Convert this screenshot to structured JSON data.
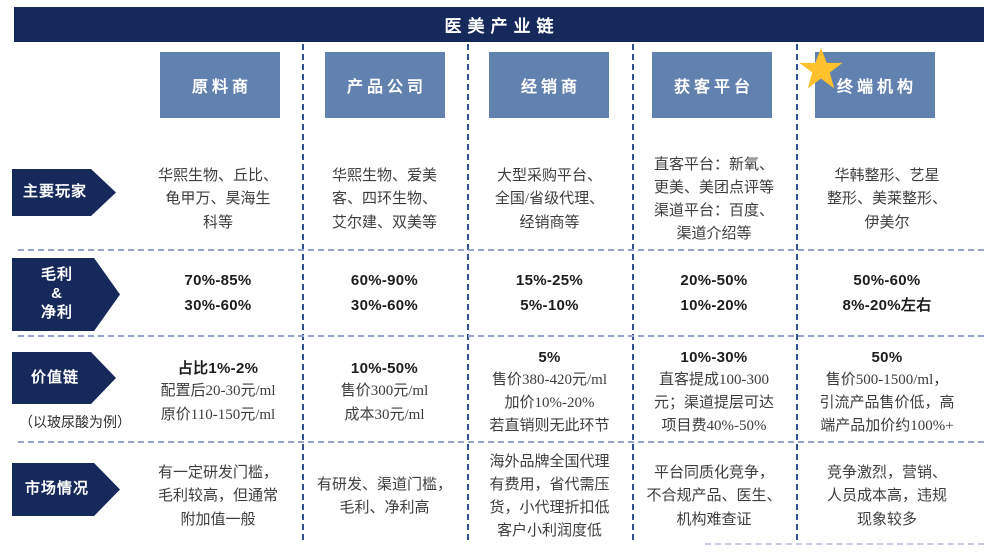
{
  "title": "医美产业链",
  "colors": {
    "navy": "#16295B",
    "header_blue": "#6181AE",
    "star_gold": "#FFC12E",
    "vline": "#33518F",
    "hline": "#97A5CE"
  },
  "columns": [
    {
      "label": "原料商",
      "starred": false
    },
    {
      "label": "产品公司",
      "starred": false
    },
    {
      "label": "经销商",
      "starred": false
    },
    {
      "label": "获客平台",
      "starred": false
    },
    {
      "label": "终端机构",
      "starred": true
    }
  ],
  "row_labels": [
    {
      "id": "players",
      "lines": [
        "主要玩家"
      ]
    },
    {
      "id": "margins",
      "lines": [
        "毛利",
        "&",
        "净利"
      ]
    },
    {
      "id": "value-chain",
      "lines": [
        "价值链"
      ],
      "note": "（以玻尿酸为例）"
    },
    {
      "id": "market",
      "lines": [
        "市场情况"
      ]
    }
  ],
  "rows": [
    {
      "id": "players",
      "bold_all": false,
      "bold_first": false,
      "cells": [
        {
          "lines": [
            "华熙生物、丘比、",
            "龟甲万、昊海生",
            "科等"
          ]
        },
        {
          "lines": [
            "华熙生物、爱美",
            "客、四环生物、",
            "艾尔建、双美等"
          ]
        },
        {
          "lines": [
            "大型采购平台、",
            "全国/省级代理、",
            "经销商等"
          ]
        },
        {
          "lines": [
            "直客平台：新氧、",
            "更美、美团点评等",
            "渠道平台：百度、",
            "渠道介绍等"
          ]
        },
        {
          "lines": [
            "华韩整形、艺星",
            "整形、美莱整形、",
            "伊美尔"
          ]
        }
      ]
    },
    {
      "id": "margins",
      "bold_all": true,
      "bold_first": false,
      "cells": [
        {
          "lines": [
            "70%-85%",
            "30%-60%"
          ]
        },
        {
          "lines": [
            "60%-90%",
            "30%-60%"
          ]
        },
        {
          "lines": [
            "15%-25%",
            "5%-10%"
          ]
        },
        {
          "lines": [
            "20%-50%",
            "10%-20%"
          ]
        },
        {
          "lines": [
            "50%-60%",
            "8%-20%左右"
          ]
        }
      ]
    },
    {
      "id": "value-chain",
      "bold_all": false,
      "bold_first": true,
      "cells": [
        {
          "lines": [
            "占比1%-2%",
            "配置后20-30元/ml",
            "原价110-150元/ml"
          ]
        },
        {
          "lines": [
            "10%-50%",
            "售价300元/ml",
            "成本30元/ml"
          ]
        },
        {
          "lines": [
            "5%",
            "售价380-420元/ml",
            "加价10%-20%",
            "若直销则无此环节"
          ]
        },
        {
          "lines": [
            "10%-30%",
            "直客提成100-300",
            "元；渠道提层可达",
            "项目费40%-50%"
          ]
        },
        {
          "lines": [
            "50%",
            "售价500-1500/ml，",
            "引流产品售价低，高",
            "端产品加价约100%+"
          ]
        }
      ]
    },
    {
      "id": "market",
      "bold_all": false,
      "bold_first": false,
      "cells": [
        {
          "lines": [
            "有一定研发门槛，",
            "毛利较高，但通常",
            "附加值一般"
          ]
        },
        {
          "lines": [
            "有研发、渠道门槛，",
            "毛利、净利高"
          ]
        },
        {
          "lines": [
            "海外品牌全国代理",
            "有费用，省代需压",
            "货，小代理折扣低",
            "客户小利润度低"
          ]
        },
        {
          "lines": [
            "平台同质化竞争，",
            "不合规产品、医生、",
            "机构难查证"
          ]
        },
        {
          "lines": [
            "竞争激烈，营销、",
            "人员成本高，违规",
            "现象较多"
          ]
        }
      ]
    }
  ]
}
